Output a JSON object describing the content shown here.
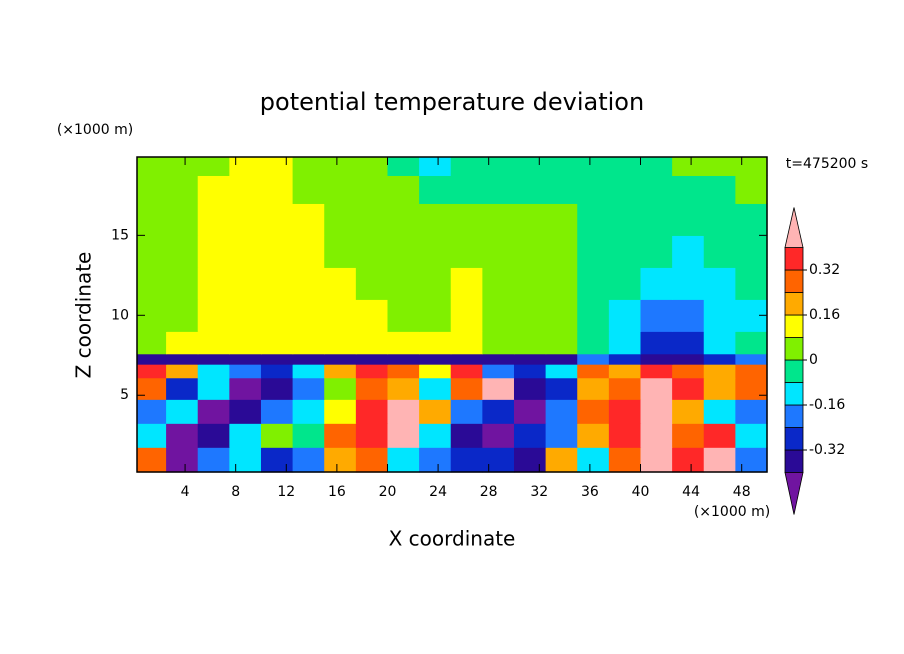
{
  "chart_data": {
    "type": "contour",
    "title": "potential temperature deviation",
    "x_label": "X coordinate",
    "y_label": "Z coordinate",
    "x_unit": "(×1000 m)",
    "y_unit": "(×1000 m)",
    "annotation": "t=475200 s",
    "xlim": [
      0.2,
      50
    ],
    "ylim": [
      0.2,
      19.9
    ],
    "xticks": [
      4,
      8,
      12,
      16,
      20,
      24,
      28,
      32,
      36,
      40,
      44,
      48
    ],
    "yticks": [
      5,
      10,
      15
    ],
    "levels": [
      -0.4,
      -0.32,
      -0.24,
      -0.16,
      -0.08,
      0,
      0.08,
      0.16,
      0.24,
      0.32,
      0.4
    ],
    "colors": [
      "#7014a0",
      "#2a0a96",
      "#0a28c8",
      "#1e78ff",
      "#00e6ff",
      "#00e68c",
      "#80f000",
      "#ffff00",
      "#ffaa00",
      "#ff6400",
      "#ff2828",
      "#ffb4b4"
    ],
    "colorbar_ticks": [
      0.32,
      0.16,
      0,
      -0.16,
      -0.32
    ],
    "x": [
      1.25,
      3.75,
      6.25,
      8.75,
      11.25,
      13.75,
      16.25,
      18.75,
      21.25,
      23.75,
      26.25,
      28.75,
      31.25,
      33.75,
      36.25,
      38.75,
      41.25,
      43.75,
      46.25,
      48.75
    ],
    "z": [
      1,
      2.5,
      4,
      5.5,
      6.7,
      7.2,
      8,
      10,
      12,
      14,
      16,
      18,
      19.5
    ],
    "values": [
      [
        0.28,
        -0.44,
        -0.2,
        -0.12,
        -0.28,
        -0.2,
        0.2,
        0.28,
        -0.12,
        -0.2,
        -0.28,
        -0.28,
        -0.36,
        0.2,
        -0.12,
        0.28,
        0.44,
        0.36,
        0.44,
        -0.2
      ],
      [
        -0.12,
        -0.44,
        -0.36,
        -0.12,
        0.04,
        -0.04,
        0.28,
        0.36,
        0.44,
        -0.12,
        -0.36,
        -0.44,
        -0.28,
        -0.2,
        0.2,
        0.36,
        0.44,
        0.28,
        0.36,
        -0.12
      ],
      [
        -0.2,
        -0.12,
        -0.44,
        -0.36,
        -0.2,
        -0.12,
        0.12,
        0.36,
        0.44,
        0.2,
        -0.2,
        -0.28,
        -0.44,
        -0.2,
        0.28,
        0.36,
        0.44,
        0.2,
        -0.12,
        -0.2
      ],
      [
        0.28,
        -0.28,
        -0.12,
        -0.44,
        -0.36,
        -0.2,
        0.04,
        0.28,
        0.2,
        -0.12,
        0.28,
        0.44,
        -0.36,
        -0.28,
        0.2,
        0.28,
        0.44,
        0.36,
        0.2,
        0.28
      ],
      [
        0.36,
        0.2,
        -0.12,
        -0.2,
        -0.28,
        -0.12,
        0.2,
        0.36,
        0.28,
        0.12,
        0.36,
        -0.2,
        -0.28,
        -0.12,
        0.28,
        0.2,
        0.36,
        0.28,
        0.2,
        0.28
      ],
      [
        -0.36,
        -0.36,
        -0.36,
        -0.36,
        -0.36,
        -0.36,
        -0.36,
        -0.36,
        -0.36,
        -0.36,
        -0.36,
        -0.36,
        -0.36,
        -0.36,
        -0.2,
        -0.28,
        -0.36,
        -0.36,
        -0.28,
        -0.2
      ],
      [
        0.04,
        0.12,
        0.12,
        0.12,
        0.12,
        0.12,
        0.12,
        0.12,
        0.12,
        0.12,
        0.12,
        0.04,
        0.04,
        0.04,
        -0.04,
        -0.12,
        -0.28,
        -0.28,
        -0.12,
        -0.04
      ],
      [
        0.04,
        0.04,
        0.12,
        0.12,
        0.12,
        0.12,
        0.12,
        0.12,
        0.04,
        0.04,
        0.12,
        0.04,
        0.04,
        0.04,
        -0.04,
        -0.12,
        -0.2,
        -0.2,
        -0.12,
        -0.12
      ],
      [
        0.04,
        0.04,
        0.12,
        0.12,
        0.12,
        0.12,
        0.12,
        0.04,
        0.04,
        0.04,
        0.12,
        0.04,
        0.04,
        0.04,
        -0.04,
        -0.04,
        -0.12,
        -0.12,
        -0.12,
        -0.04
      ],
      [
        0.04,
        0.04,
        0.12,
        0.12,
        0.12,
        0.12,
        0.04,
        0.04,
        0.04,
        0.04,
        0.04,
        0.04,
        0.04,
        0.04,
        -0.04,
        -0.04,
        -0.04,
        -0.12,
        -0.04,
        -0.04
      ],
      [
        0.04,
        0.04,
        0.12,
        0.12,
        0.12,
        0.12,
        0.04,
        0.04,
        0.04,
        0.04,
        0.04,
        0.04,
        0.04,
        0.04,
        -0.04,
        -0.04,
        -0.04,
        -0.04,
        -0.04,
        -0.04
      ],
      [
        0.04,
        0.04,
        0.12,
        0.12,
        0.12,
        0.04,
        0.04,
        0.04,
        0.04,
        -0.04,
        -0.04,
        -0.04,
        -0.04,
        -0.04,
        -0.04,
        -0.04,
        -0.04,
        -0.04,
        -0.04,
        0.04
      ],
      [
        0.04,
        0.04,
        0.04,
        0.12,
        0.12,
        0.04,
        0.04,
        0.04,
        -0.04,
        -0.12,
        -0.04,
        -0.04,
        -0.04,
        -0.04,
        -0.04,
        -0.04,
        -0.04,
        0.04,
        0.04,
        0.04
      ]
    ]
  }
}
